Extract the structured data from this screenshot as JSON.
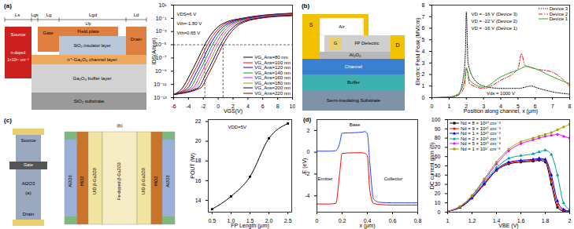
{
  "panels": [
    "(a)",
    "(b)",
    "(c)",
    "(d)"
  ],
  "diagrams": {
    "a_structure": {
      "dimensions": [
        "Ls",
        "Lgs",
        "Lg",
        "Lgd",
        "Ld"
      ],
      "field_plate_length": "Lfp",
      "source": "Source",
      "doping": "n-doped",
      "doping_level": "1×10¹⁸ cm⁻³",
      "gate": "Gate",
      "field_plate": "Field plate",
      "insulator": "SiO₂ insulator layer",
      "drain": "Drain",
      "channel": "n⁺-Ga₂O₃ channel layer",
      "buffer": "Ga₂O₃ buffer layer",
      "substrate": "SiO₂ substrate"
    },
    "b_structure": {
      "source": "S",
      "air": "Air",
      "gate": "G",
      "dielectric": "FP Dielectric",
      "drain": "D",
      "oxide": "Al₂O₃",
      "channel": "Channel",
      "buffer": "Buffer",
      "substrate": "Semi-insulating Substrate"
    },
    "c_top_view": {
      "label": "(a)",
      "source": "Source",
      "gate": "Gate",
      "oxide": "Al2O3",
      "drain": "Drain"
    },
    "c_cross_section": {
      "label": "(b)",
      "layers": [
        "Al2O3",
        "HfO2",
        "UID β-Ga2O3",
        "Fe-doped β-Ga2O3",
        "UID β-Ga2O3",
        "HfO2",
        "Al2O3"
      ]
    }
  },
  "chart_data": [
    {
      "type": "line",
      "x_label": "VGS(V)",
      "y_label": "IDS(A/mm)",
      "log": "y",
      "xlim": [
        -6,
        10
      ],
      "xticks": [
        -6,
        -4,
        -2,
        0,
        2,
        4,
        6,
        8,
        10
      ],
      "ylim": [
        1e-13,
        10
      ],
      "yticks": [
        {
          "value": 10,
          "label": "10¹"
        },
        {
          "value": 0.1,
          "label": "10⁻¹"
        },
        {
          "value": 0.001,
          "label": "10⁻³"
        },
        {
          "value": 1e-05,
          "label": "10⁻⁵"
        },
        {
          "value": 1e-07,
          "label": "10⁻⁷"
        },
        {
          "value": 1e-09,
          "label": "10⁻⁹"
        },
        {
          "value": 1e-11,
          "label": "10⁻¹¹"
        },
        {
          "value": 1e-13,
          "label": "10⁻¹³"
        }
      ],
      "annotations": [
        "VDS=6 V",
        "Vth=-1.80 V",
        "Vth=0.65 V"
      ],
      "threshold_current": 1e-05,
      "threshold_voltages": [
        -1.8,
        0.65
      ],
      "legend": "lower right",
      "series": [
        {
          "name": "VG_Ans=80 nm",
          "color": "#000000",
          "x": [
            -6,
            -4.8,
            -3.8,
            -2.8,
            -1.8,
            -0.8,
            0.2,
            1.2,
            3.2,
            10
          ],
          "values": [
            3e-13,
            3e-12,
            3e-10,
            5e-08,
            1e-05,
            0.0006,
            0.008,
            0.03,
            0.1,
            0.6
          ]
        },
        {
          "name": "VG_Ans=100 nm",
          "color": "#ff0000",
          "x": [
            -6,
            -4.45,
            -3.45,
            -2.45,
            -1.45,
            -0.45,
            0.55,
            1.55,
            3.55,
            10
          ],
          "values": [
            3e-13,
            3e-12,
            3e-10,
            5e-08,
            1e-05,
            0.0006,
            0.008,
            0.03,
            0.1,
            0.55
          ]
        },
        {
          "name": "VG_Ans=120 nm",
          "color": "#0000ff",
          "x": [
            -6,
            -4.1,
            -3.1,
            -2.1,
            -1.1,
            -0.1,
            0.9,
            1.9,
            3.9,
            10
          ],
          "values": [
            3e-13,
            3e-12,
            3e-10,
            5e-08,
            1e-05,
            0.0006,
            0.008,
            0.03,
            0.1,
            0.5
          ]
        },
        {
          "name": "VG_Ans=140 nm",
          "color": "#00a000",
          "x": [
            -6,
            -3.75,
            -2.75,
            -1.75,
            -0.75,
            0.25,
            1.25,
            2.25,
            4.25,
            10
          ],
          "values": [
            3e-13,
            3e-12,
            3e-10,
            5e-08,
            1e-05,
            0.0006,
            0.008,
            0.03,
            0.1,
            0.45
          ]
        },
        {
          "name": "VG_Ans=160 nm",
          "color": "#ff00ff",
          "x": [
            -6,
            -3.4,
            -2.4,
            -1.4,
            -0.4,
            0.6,
            1.6,
            2.6,
            4.6,
            10
          ],
          "values": [
            3e-13,
            3e-12,
            3e-10,
            5e-08,
            1e-05,
            0.0006,
            0.008,
            0.03,
            0.1,
            0.4
          ]
        },
        {
          "name": "VG_Ans=180 nm",
          "color": "#a0a000",
          "x": [
            -6,
            -3.05,
            -2.05,
            -1.05,
            -0.05,
            0.95,
            1.95,
            2.95,
            4.95,
            10
          ],
          "values": [
            3e-13,
            3e-12,
            3e-10,
            5e-08,
            1e-05,
            0.0006,
            0.008,
            0.03,
            0.1,
            0.35
          ]
        },
        {
          "name": "VG_Ans=200 nm",
          "color": "#000080",
          "x": [
            -6,
            -2.7,
            -1.7,
            -0.7,
            0.3,
            1.3,
            2.3,
            3.3,
            5.3,
            10
          ],
          "values": [
            3e-13,
            3e-12,
            3e-10,
            5e-08,
            1e-05,
            0.0006,
            0.008,
            0.03,
            0.1,
            0.3
          ]
        },
        {
          "name": "VG_Ans=220 nm",
          "color": "#800000",
          "x": [
            -6,
            -2.35,
            -1.35,
            -0.35,
            0.65,
            1.65,
            2.65,
            3.65,
            5.65,
            10
          ],
          "values": [
            3e-13,
            3e-12,
            3e-10,
            5e-08,
            1e-05,
            0.0006,
            0.008,
            0.03,
            0.1,
            0.25
          ]
        }
      ]
    },
    {
      "type": "line",
      "x_label": "Position along channel, x (μm)",
      "y_label": "Electric Field Peak (MV/cm)",
      "xlim": [
        0,
        8
      ],
      "xticks": [
        0,
        1,
        2,
        3,
        4,
        5,
        6,
        7,
        8
      ],
      "ylim": [
        0,
        8
      ],
      "yticks": [
        0,
        1,
        2,
        3,
        4,
        5,
        6,
        7,
        8
      ],
      "annotations": [
        "VD = -16 V (Device 3)",
        "VD = -22 V (Device 2)",
        "VD = -16 V (Device 1)",
        "Vds = 1000 V"
      ],
      "legend": "upper right",
      "series": [
        {
          "name": "Device 3",
          "color": "#000000",
          "line_style": "dotted",
          "x": [
            0,
            1,
            1.5,
            1.8,
            1.95,
            2.0,
            2.1,
            2.5,
            3,
            4,
            5,
            5.8,
            6,
            7,
            8
          ],
          "values": [
            0,
            0.05,
            0.2,
            1.5,
            4,
            7.4,
            3,
            1.5,
            1,
            0.8,
            0.8,
            1,
            0.9,
            0.5,
            0.3
          ]
        },
        {
          "name": "Device 2",
          "color": "#e8191c",
          "line_style": "dashdot",
          "x": [
            0,
            1,
            1.5,
            1.9,
            2.0,
            2.2,
            3,
            4,
            5,
            5.2,
            5.4,
            6,
            7,
            8
          ],
          "values": [
            0,
            0.05,
            0.2,
            1,
            2.5,
            1.2,
            0.8,
            1.5,
            2.5,
            3.8,
            2.8,
            2.5,
            2.2,
            1
          ]
        },
        {
          "name": "Device 1",
          "color": "#22aa22",
          "line_style": "solid",
          "x": [
            0,
            1,
            1.5,
            1.9,
            2.0,
            2.2,
            3,
            4,
            5,
            5.5,
            6,
            7,
            8
          ],
          "values": [
            0,
            0.05,
            0.3,
            1.5,
            2.6,
            1.5,
            0.9,
            1.8,
            2.4,
            2.7,
            2.5,
            1.8,
            1.2
          ]
        }
      ]
    },
    {
      "type": "line",
      "x_label": "FP Length (μm)",
      "y_label": "POUT (W)",
      "xlim": [
        0.4,
        2.6
      ],
      "xticks": [
        0.5,
        {
          "value": 1,
          "label": "1.0"
        },
        1.5,
        {
          "value": 2,
          "label": "2.0"
        },
        2.5
      ],
      "ylim": [
        12.8,
        22.2
      ],
      "yticks": [
        14,
        16,
        18,
        20,
        22
      ],
      "annotations": [
        "VDD=5V"
      ],
      "series": [
        {
          "color": "#000000",
          "marker": "square",
          "x": [
            0.5,
            1,
            1.5,
            2,
            2.5
          ],
          "values": [
            13.1,
            14.4,
            16.4,
            20.3,
            21.8
          ]
        }
      ]
    },
    {
      "type": "line",
      "x_label": "x (μm)",
      "y_label": "E (eV)",
      "xlim": [
        0,
        0.8
      ],
      "xticks": [
        0,
        0.2,
        0.4,
        0.6,
        0.8
      ],
      "ylim": [
        -5.5,
        3
      ],
      "yticks": [
        -4,
        -2,
        0,
        2
      ],
      "annotations": [
        "Emitter",
        "Base",
        "Collector"
      ],
      "x": [
        0,
        0.1,
        0.15,
        0.18,
        0.2,
        0.3,
        0.36,
        0.38,
        0.4,
        0.42,
        0.45,
        0.5,
        0.6,
        0.7,
        0.8
      ],
      "series": [
        {
          "color": "#1f3fff",
          "values": [
            0.1,
            0.1,
            0.15,
            0.8,
            1.75,
            1.8,
            1.85,
            1.9,
            1.7,
            -1,
            -4.3,
            -4.6,
            -4.65,
            -4.65,
            -4.65
          ]
        },
        {
          "color": "#ff0000",
          "values": [
            -4.75,
            -4.75,
            -4.7,
            -2,
            -0.1,
            -0.05,
            -0.05,
            -0.1,
            -0.3,
            -3.5,
            -4.7,
            -4.8,
            -4.85,
            -4.85,
            -4.85
          ]
        }
      ]
    },
    {
      "type": "line",
      "x_label": "VBE (V)",
      "y_label": "DC current gain (β)",
      "xlim": [
        1,
        2
      ],
      "xticks": [
        1,
        1.2,
        1.4,
        1.6,
        1.8,
        2
      ],
      "ylim": [
        0,
        100
      ],
      "yticks": [
        0,
        10,
        20,
        30,
        40,
        50,
        60,
        70,
        80,
        90,
        100
      ],
      "legend": "upper left",
      "x": [
        1,
        1.1,
        1.2,
        1.3,
        1.4,
        1.5,
        1.6,
        1.7,
        1.75,
        1.8,
        1.85,
        1.9,
        1.95,
        2.0
      ],
      "series": [
        {
          "name": "Nd = 8 × 10¹⁵ cm⁻³",
          "color": "#000000",
          "marker": "square",
          "values": [
            1,
            5,
            15,
            30,
            45,
            52,
            54,
            55,
            56,
            54,
            30,
            5,
            1,
            0
          ]
        },
        {
          "name": "Nd = 9 × 10¹⁵ cm⁻³",
          "color": "#ff0000",
          "marker": "circle",
          "values": [
            1,
            5,
            15,
            30,
            45,
            53,
            55,
            56,
            57,
            56,
            35,
            8,
            2,
            1
          ]
        },
        {
          "name": "Nd = 1 × 10¹⁶ cm⁻³",
          "color": "#0000ff",
          "marker": "triangle",
          "values": [
            1,
            5,
            16,
            31,
            46,
            54,
            56,
            57,
            58,
            57,
            40,
            12,
            3,
            1
          ]
        },
        {
          "name": "Nd = 2 × 10¹⁶ cm⁻³",
          "color": "#00a0a0",
          "marker": "triangle",
          "values": [
            1,
            6,
            17,
            33,
            48,
            58,
            61,
            63,
            65,
            67,
            62,
            40,
            10,
            3
          ]
        },
        {
          "name": "Nd = 5 × 10¹⁶ cm⁻³",
          "color": "#ff00ff",
          "marker": "circle",
          "values": [
            1,
            6,
            18,
            35,
            52,
            66,
            74,
            78,
            80,
            82,
            83,
            84,
            82,
            80
          ]
        },
        {
          "name": "Nd = 1 × 10¹⁷ cm⁻³",
          "color": "#a0a000",
          "marker": "square",
          "values": [
            1,
            6,
            18,
            36,
            54,
            68,
            76,
            80,
            82,
            84,
            86,
            89,
            92,
            95
          ]
        }
      ]
    }
  ]
}
